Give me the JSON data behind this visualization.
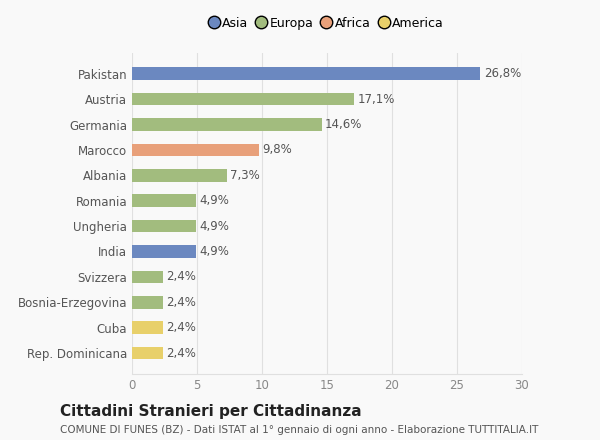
{
  "categories": [
    "Rep. Dominicana",
    "Cuba",
    "Bosnia-Erzegovina",
    "Svizzera",
    "India",
    "Ungheria",
    "Romania",
    "Albania",
    "Marocco",
    "Germania",
    "Austria",
    "Pakistan"
  ],
  "values": [
    2.4,
    2.4,
    2.4,
    2.4,
    4.9,
    4.9,
    4.9,
    7.3,
    9.8,
    14.6,
    17.1,
    26.8
  ],
  "labels": [
    "2,4%",
    "2,4%",
    "2,4%",
    "2,4%",
    "4,9%",
    "4,9%",
    "4,9%",
    "7,3%",
    "9,8%",
    "14,6%",
    "17,1%",
    "26,8%"
  ],
  "colors": [
    "#e8d06a",
    "#e8d06a",
    "#a2bc7e",
    "#a2bc7e",
    "#6b88c0",
    "#a2bc7e",
    "#a2bc7e",
    "#a2bc7e",
    "#e8a07a",
    "#a2bc7e",
    "#a2bc7e",
    "#6b88c0"
  ],
  "legend_labels": [
    "Asia",
    "Europa",
    "Africa",
    "America"
  ],
  "legend_colors": [
    "#6b88c0",
    "#a2bc7e",
    "#e8a07a",
    "#e8d06a"
  ],
  "title": "Cittadini Stranieri per Cittadinanza",
  "subtitle": "COMUNE DI FUNES (BZ) - Dati ISTAT al 1° gennaio di ogni anno - Elaborazione TUTTITALIA.IT",
  "xlim": [
    0,
    30
  ],
  "xticks": [
    0,
    5,
    10,
    15,
    20,
    25,
    30
  ],
  "bar_height": 0.5,
  "background_color": "#f9f9f9",
  "grid_color": "#e0e0e0",
  "label_fontsize": 8.5,
  "tick_fontsize": 8.5,
  "title_fontsize": 11,
  "subtitle_fontsize": 7.5
}
